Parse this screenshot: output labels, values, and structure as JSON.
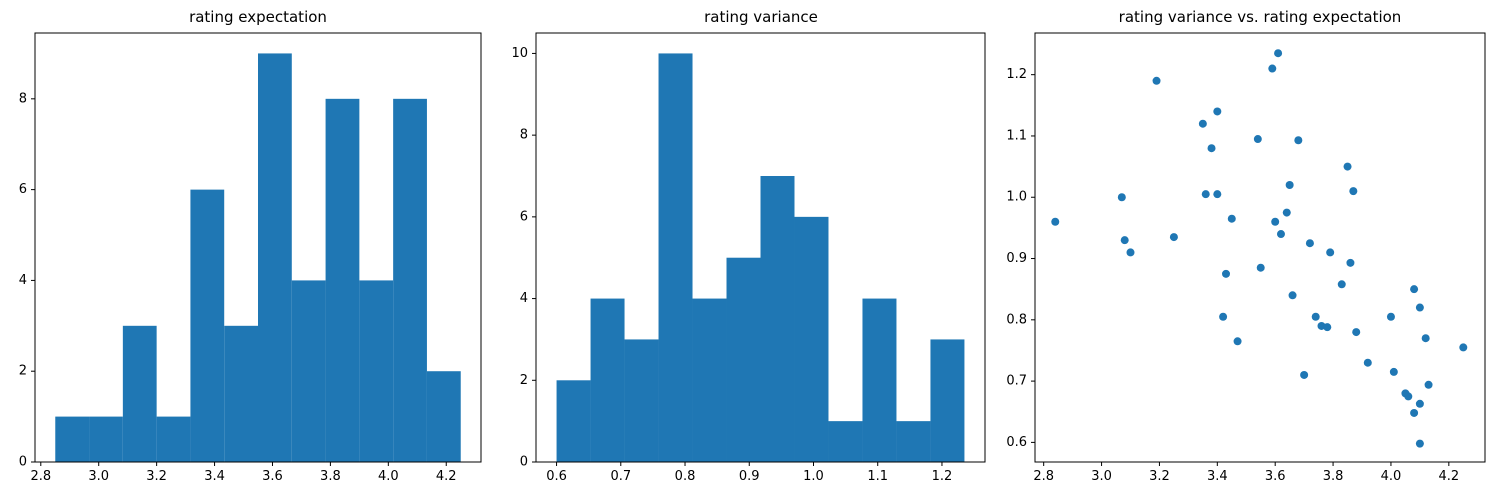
{
  "figure": {
    "background": "#ffffff",
    "axes_color": "#000000",
    "accent_color": "#1f77b4"
  },
  "chart_data": [
    {
      "type": "bar",
      "subtype": "histogram",
      "title": "rating expectation",
      "bar_color": "#1f77b4",
      "bin_start": 2.85,
      "bin_width": 0.1166667,
      "counts": [
        1,
        1,
        3,
        1,
        6,
        3,
        9,
        4,
        8,
        4,
        8,
        2
      ],
      "xlim": [
        2.78,
        4.32
      ],
      "ylim": [
        0,
        9.45
      ],
      "xticks": [
        2.8,
        3.0,
        3.2,
        3.4,
        3.6,
        3.8,
        4.0,
        4.2
      ],
      "xtick_labels": [
        "2.8",
        "3.0",
        "3.2",
        "3.4",
        "3.6",
        "3.8",
        "4.0",
        "4.2"
      ],
      "yticks": [
        0,
        2,
        4,
        6,
        8
      ],
      "ytick_labels": [
        "0",
        "2",
        "4",
        "6",
        "8"
      ],
      "grid": false,
      "legend": "none"
    },
    {
      "type": "bar",
      "subtype": "histogram",
      "title": "rating variance",
      "bar_color": "#1f77b4",
      "bin_start": 0.6,
      "bin_width": 0.0529167,
      "counts": [
        2,
        4,
        3,
        10,
        4,
        5,
        7,
        6,
        1,
        4,
        1,
        3
      ],
      "xlim": [
        0.568,
        1.267
      ],
      "ylim": [
        0,
        10.5
      ],
      "xticks": [
        0.6,
        0.7,
        0.8,
        0.9,
        1.0,
        1.1,
        1.2
      ],
      "xtick_labels": [
        "0.6",
        "0.7",
        "0.8",
        "0.9",
        "1.0",
        "1.1",
        "1.2"
      ],
      "yticks": [
        0,
        2,
        4,
        6,
        8,
        10
      ],
      "ytick_labels": [
        "0",
        "2",
        "4",
        "6",
        "8",
        "10"
      ],
      "grid": false,
      "legend": "none"
    },
    {
      "type": "scatter",
      "title": "rating variance vs. rating expectation",
      "marker_color": "#1f77b4",
      "marker_radius": 4,
      "points": [
        [
          2.84,
          0.96
        ],
        [
          3.07,
          1.0
        ],
        [
          3.08,
          0.93
        ],
        [
          3.1,
          0.91
        ],
        [
          3.19,
          1.19
        ],
        [
          3.25,
          0.935
        ],
        [
          3.35,
          1.12
        ],
        [
          3.36,
          1.005
        ],
        [
          3.38,
          1.08
        ],
        [
          3.4,
          1.005
        ],
        [
          3.4,
          1.14
        ],
        [
          3.42,
          0.805
        ],
        [
          3.43,
          0.875
        ],
        [
          3.45,
          0.965
        ],
        [
          3.47,
          0.765
        ],
        [
          3.54,
          1.095
        ],
        [
          3.55,
          0.885
        ],
        [
          3.59,
          1.21
        ],
        [
          3.6,
          0.96
        ],
        [
          3.61,
          1.235
        ],
        [
          3.62,
          0.94
        ],
        [
          3.64,
          0.975
        ],
        [
          3.65,
          1.02
        ],
        [
          3.66,
          0.84
        ],
        [
          3.68,
          1.093
        ],
        [
          3.7,
          0.71
        ],
        [
          3.72,
          0.925
        ],
        [
          3.74,
          0.805
        ],
        [
          3.76,
          0.79
        ],
        [
          3.78,
          0.788
        ],
        [
          3.79,
          0.91
        ],
        [
          3.83,
          0.858
        ],
        [
          3.85,
          1.05
        ],
        [
          3.86,
          0.893
        ],
        [
          3.87,
          1.01
        ],
        [
          3.88,
          0.78
        ],
        [
          3.92,
          0.73
        ],
        [
          4.0,
          0.805
        ],
        [
          4.01,
          0.715
        ],
        [
          4.05,
          0.68
        ],
        [
          4.06,
          0.675
        ],
        [
          4.08,
          0.648
        ],
        [
          4.08,
          0.85
        ],
        [
          4.1,
          0.82
        ],
        [
          4.1,
          0.663
        ],
        [
          4.1,
          0.598
        ],
        [
          4.12,
          0.77
        ],
        [
          4.13,
          0.694
        ],
        [
          4.25,
          0.755
        ]
      ],
      "xlim": [
        2.77,
        4.325
      ],
      "ylim": [
        0.568,
        1.268
      ],
      "xticks": [
        2.8,
        3.0,
        3.2,
        3.4,
        3.6,
        3.8,
        4.0,
        4.2
      ],
      "xtick_labels": [
        "2.8",
        "3.0",
        "3.2",
        "3.4",
        "3.6",
        "3.8",
        "4.0",
        "4.2"
      ],
      "yticks": [
        0.6,
        0.7,
        0.8,
        0.9,
        1.0,
        1.1,
        1.2
      ],
      "ytick_labels": [
        "0.6",
        "0.7",
        "0.8",
        "0.9",
        "1.0",
        "1.1",
        "1.2"
      ],
      "grid": false,
      "legend": "none"
    }
  ]
}
